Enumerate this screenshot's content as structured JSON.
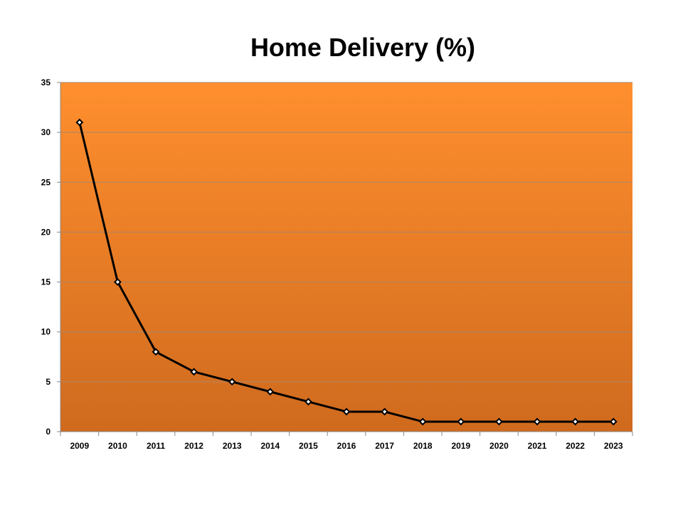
{
  "chart_data": {
    "type": "line",
    "title": "Home Delivery (%)",
    "xlabel": "",
    "ylabel": "",
    "categories": [
      "2009",
      "2010",
      "2011",
      "2012",
      "2013",
      "2014",
      "2015",
      "2016",
      "2017",
      "2018",
      "2019",
      "2020",
      "2021",
      "2022",
      "2023"
    ],
    "series": [
      {
        "values": [
          31,
          15,
          8,
          6,
          5,
          4,
          3,
          2,
          2,
          1,
          1,
          1,
          1,
          1,
          1
        ]
      }
    ],
    "ylim": [
      0,
      35
    ],
    "yticks": [
      "0",
      "5",
      "10",
      "15",
      "20",
      "25",
      "30",
      "35"
    ],
    "grid": true,
    "legend": "none",
    "colors": {
      "plot_bg_top": "#ff8f2e",
      "plot_bg_bottom": "#cf6a1e",
      "line": "#000000",
      "marker_fill": "#ffffff",
      "gridline": "#a8866a"
    }
  }
}
